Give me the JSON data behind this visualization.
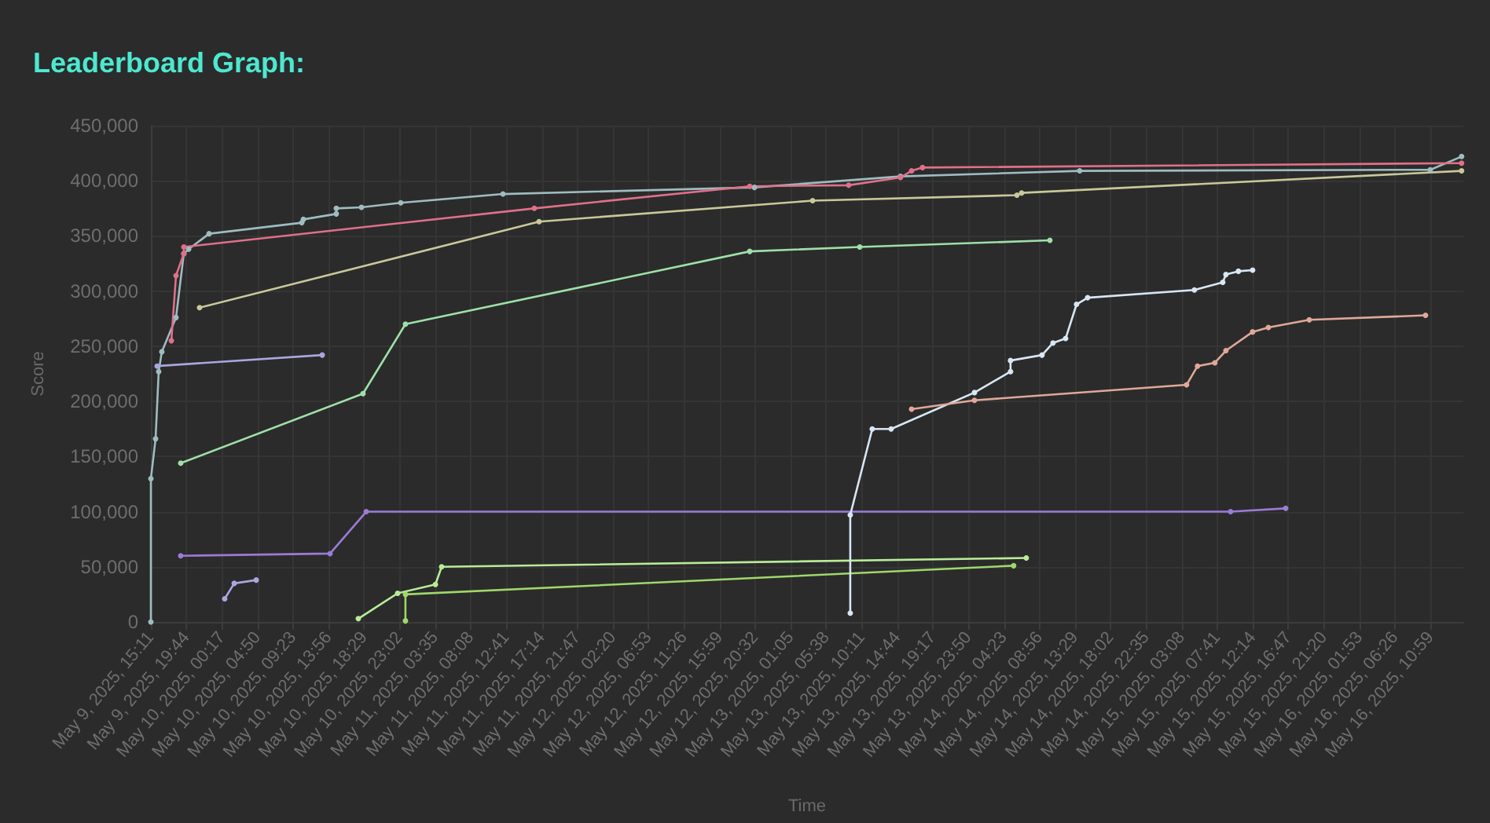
{
  "chart_data": {
    "type": "line",
    "title": "Leaderboard Graph:",
    "xlabel": "Time",
    "marker": "circle",
    "ylabel": "Score",
    "grid": true,
    "xlim": [
      "2025-05-09T15:11",
      "2025-05-16T15:10"
    ],
    "ylim": [
      0,
      450000
    ],
    "yticks": [
      {
        "value": 0,
        "label": "0"
      },
      {
        "value": 50000,
        "label": "50,000"
      },
      {
        "value": 100000,
        "label": "100,000"
      },
      {
        "value": 150000,
        "label": "150,000"
      },
      {
        "value": 200000,
        "label": "200,000"
      },
      {
        "value": 250000,
        "label": "250,000"
      },
      {
        "value": 300000,
        "label": "300,000"
      },
      {
        "value": 350000,
        "label": "350,000"
      },
      {
        "value": 400000,
        "label": "400,000"
      },
      {
        "value": 450000,
        "label": "450,000"
      }
    ],
    "xticks": [
      {
        "value": "2025-05-09T15:11",
        "label": "May 9, 2025, 15:11"
      },
      {
        "value": "2025-05-09T19:44",
        "label": "May 9, 2025, 19:44"
      },
      {
        "value": "2025-05-10T00:17",
        "label": "May 10, 2025, 00:17"
      },
      {
        "value": "2025-05-10T04:50",
        "label": "May 10, 2025, 04:50"
      },
      {
        "value": "2025-05-10T09:23",
        "label": "May 10, 2025, 09:23"
      },
      {
        "value": "2025-05-10T13:56",
        "label": "May 10, 2025, 13:56"
      },
      {
        "value": "2025-05-10T18:29",
        "label": "May 10, 2025, 18:29"
      },
      {
        "value": "2025-05-10T23:02",
        "label": "May 10, 2025, 23:02"
      },
      {
        "value": "2025-05-11T03:35",
        "label": "May 11, 2025, 03:35"
      },
      {
        "value": "2025-05-11T08:08",
        "label": "May 11, 2025, 08:08"
      },
      {
        "value": "2025-05-11T12:41",
        "label": "May 11, 2025, 12:41"
      },
      {
        "value": "2025-05-11T17:14",
        "label": "May 11, 2025, 17:14"
      },
      {
        "value": "2025-05-11T21:47",
        "label": "May 11, 2025, 21:47"
      },
      {
        "value": "2025-05-12T02:20",
        "label": "May 12, 2025, 02:20"
      },
      {
        "value": "2025-05-12T06:53",
        "label": "May 12, 2025, 06:53"
      },
      {
        "value": "2025-05-12T11:26",
        "label": "May 12, 2025, 11:26"
      },
      {
        "value": "2025-05-12T15:59",
        "label": "May 12, 2025, 15:59"
      },
      {
        "value": "2025-05-12T20:32",
        "label": "May 12, 2025, 20:32"
      },
      {
        "value": "2025-05-13T01:05",
        "label": "May 13, 2025, 01:05"
      },
      {
        "value": "2025-05-13T05:38",
        "label": "May 13, 2025, 05:38"
      },
      {
        "value": "2025-05-13T10:11",
        "label": "May 13, 2025, 10:11"
      },
      {
        "value": "2025-05-13T14:44",
        "label": "May 13, 2025, 14:44"
      },
      {
        "value": "2025-05-13T19:17",
        "label": "May 13, 2025, 19:17"
      },
      {
        "value": "2025-05-13T23:50",
        "label": "May 13, 2025, 23:50"
      },
      {
        "value": "2025-05-14T04:23",
        "label": "May 14, 2025, 04:23"
      },
      {
        "value": "2025-05-14T08:56",
        "label": "May 14, 2025, 08:56"
      },
      {
        "value": "2025-05-14T13:29",
        "label": "May 14, 2025, 13:29"
      },
      {
        "value": "2025-05-14T18:02",
        "label": "May 14, 2025, 18:02"
      },
      {
        "value": "2025-05-14T22:35",
        "label": "May 14, 2025, 22:35"
      },
      {
        "value": "2025-05-15T03:08",
        "label": "May 15, 2025, 03:08"
      },
      {
        "value": "2025-05-15T07:41",
        "label": "May 15, 2025, 07:41"
      },
      {
        "value": "2025-05-15T12:14",
        "label": "May 15, 2025, 12:14"
      },
      {
        "value": "2025-05-15T16:47",
        "label": "May 15, 2025, 16:47"
      },
      {
        "value": "2025-05-15T21:20",
        "label": "May 15, 2025, 21:20"
      },
      {
        "value": "2025-05-16T01:53",
        "label": "May 16, 2025, 01:53"
      },
      {
        "value": "2025-05-16T06:26",
        "label": "May 16, 2025, 06:26"
      },
      {
        "value": "2025-05-16T10:59",
        "label": "May 16, 2025, 10:59"
      }
    ],
    "series": [
      {
        "color": "#9fbcc0",
        "x": [
          "2025-05-09T15:11",
          "2025-05-09T15:11",
          "2025-05-09T15:47",
          "2025-05-09T16:11",
          "2025-05-09T16:35",
          "2025-05-09T18:24",
          "2025-05-09T19:24",
          "2025-05-09T20:01",
          "2025-05-09T22:38",
          "2025-05-10T10:30",
          "2025-05-10T10:42",
          "2025-05-10T14:55",
          "2025-05-10T14:55",
          "2025-05-10T18:08",
          "2025-05-10T23:10",
          "2025-05-11T12:15",
          "2025-05-12T20:26",
          "2025-05-13T15:08",
          "2025-05-14T14:04",
          "2025-05-16T10:56",
          "2025-05-16T14:57"
        ],
        "values": [
          0,
          130000,
          166000,
          227000,
          245000,
          276000,
          334000,
          338000,
          352000,
          362000,
          365000,
          370000,
          375000,
          376000,
          380000,
          388000,
          394000,
          404000,
          409000,
          410000,
          422000
        ]
      },
      {
        "color": "#e0708a",
        "x": [
          "2025-05-09T17:48",
          "2025-05-09T18:24",
          "2025-05-09T19:24",
          "2025-05-09T19:24",
          "2025-05-11T16:16",
          "2025-05-12T19:50",
          "2025-05-13T08:30",
          "2025-05-13T15:08",
          "2025-05-13T16:33",
          "2025-05-13T17:57",
          "2025-05-16T14:57"
        ],
        "values": [
          255000,
          314000,
          334000,
          340000,
          375000,
          395000,
          396000,
          403000,
          409000,
          412000,
          416000
        ]
      },
      {
        "color": "#c8c89a",
        "x": [
          "2025-05-09T21:25",
          "2025-05-11T16:52",
          "2025-05-13T03:53",
          "2025-05-14T06:02",
          "2025-05-14T06:38",
          "2025-05-16T14:57"
        ],
        "values": [
          285000,
          363000,
          382000,
          387000,
          389000,
          409000
        ]
      },
      {
        "color": "#9ee0a8",
        "x": [
          "2025-05-09T19:00",
          "2025-05-10T18:20",
          "2025-05-10T23:46",
          "2025-05-12T19:50",
          "2025-05-13T09:55",
          "2025-05-14T10:15"
        ],
        "values": [
          144000,
          207000,
          270000,
          336000,
          340000,
          346000
        ]
      },
      {
        "color": "#a9a6e0",
        "x": [
          "2025-05-09T15:59",
          "2025-05-10T13:07"
        ],
        "values": [
          232000,
          242000
        ]
      },
      {
        "color": "#9b7bd6",
        "x": [
          "2025-05-09T19:00",
          "2025-05-10T14:07",
          "2025-05-10T18:45",
          "2025-05-15T09:23",
          "2025-05-15T16:26"
        ],
        "values": [
          60000,
          62000,
          100000,
          100000,
          103000
        ]
      },
      {
        "color": "#a9a6e0",
        "x": [
          "2025-05-10T00:38",
          "2025-05-10T01:51",
          "2025-05-10T04:40"
        ],
        "values": [
          21000,
          35000,
          38000
        ]
      },
      {
        "color": "#b8ec98",
        "x": [
          "2025-05-10T17:44",
          "2025-05-10T22:46",
          "2025-05-11T03:36",
          "2025-05-11T04:24",
          "2025-05-14T07:14"
        ],
        "values": [
          3000,
          26000,
          34000,
          50000,
          58000
        ]
      },
      {
        "color": "#9fd86a",
        "x": [
          "2025-05-10T23:46",
          "2025-05-10T23:46",
          "2025-05-14T05:37"
        ],
        "values": [
          1000,
          25000,
          51000
        ]
      },
      {
        "color": "#d8e6f4",
        "x": [
          "2025-05-13T08:42",
          "2025-05-13T08:42",
          "2025-05-13T11:31",
          "2025-05-13T13:56",
          "2025-05-14T00:36",
          "2025-05-14T05:13",
          "2025-05-14T05:13",
          "2025-05-14T09:15",
          "2025-05-14T10:39",
          "2025-05-14T12:16",
          "2025-05-14T13:40",
          "2025-05-14T15:05",
          "2025-05-15T04:45",
          "2025-05-15T08:23",
          "2025-05-15T08:47",
          "2025-05-15T10:23",
          "2025-05-15T12:12"
        ],
        "values": [
          8000,
          97000,
          175000,
          175000,
          208000,
          227000,
          237000,
          242000,
          253000,
          257000,
          288000,
          294000,
          301000,
          308000,
          315000,
          318000,
          319000
        ]
      },
      {
        "color": "#e0a898",
        "x": [
          "2025-05-13T16:33",
          "2025-05-14T00:36",
          "2025-05-15T03:45",
          "2025-05-15T05:09",
          "2025-05-15T07:22",
          "2025-05-15T08:47",
          "2025-05-15T12:12",
          "2025-05-15T14:13",
          "2025-05-15T19:27",
          "2025-05-16T10:20"
        ],
        "values": [
          193000,
          201000,
          215000,
          232000,
          235000,
          246000,
          263000,
          267000,
          274000,
          278000
        ]
      }
    ]
  }
}
